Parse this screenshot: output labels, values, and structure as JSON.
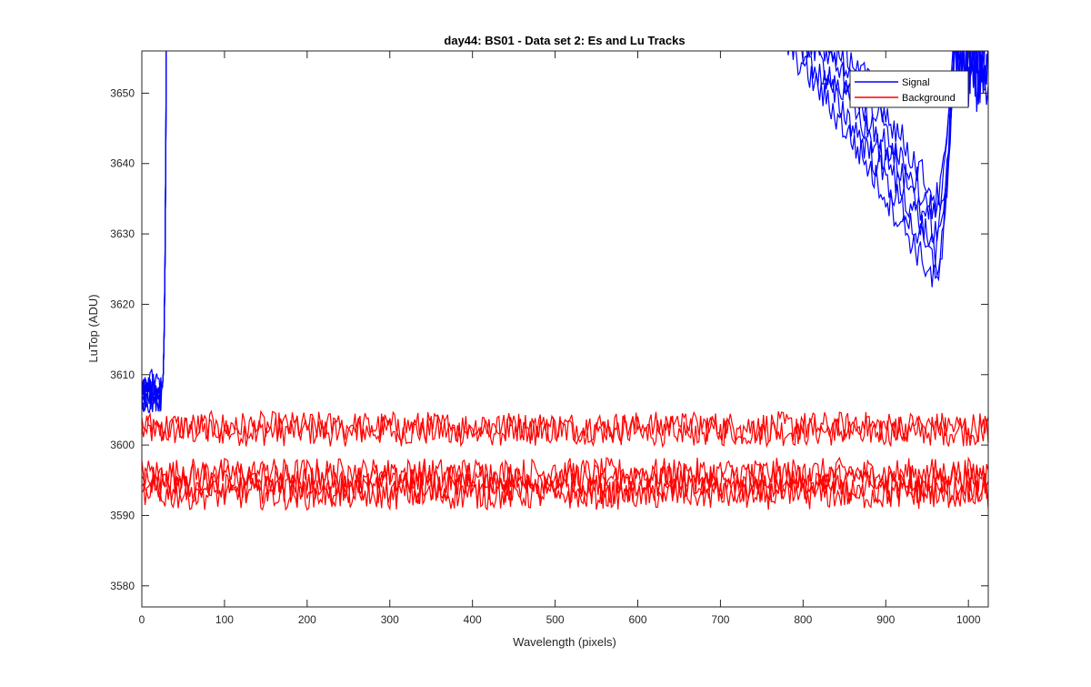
{
  "chart_data": {
    "type": "line",
    "title": "day44: BS01 - Data set 2: Es and Lu Tracks",
    "xlabel": "Wavelength (pixels)",
    "ylabel": "LuTop (ADU)",
    "xlim": [
      0,
      1024
    ],
    "ylim": [
      3577,
      3656
    ],
    "xticks": [
      0,
      100,
      200,
      300,
      400,
      500,
      600,
      700,
      800,
      900,
      1000
    ],
    "yticks": [
      3580,
      3590,
      3600,
      3610,
      3620,
      3630,
      3640,
      3650
    ],
    "grid": false,
    "legend": {
      "position": "top-right",
      "entries": [
        "Signal",
        "Background"
      ]
    },
    "colors": {
      "Signal": "#0000ff",
      "Background": "#ff0000",
      "axes": "#262626"
    },
    "series": [
      {
        "name": "Signal",
        "color": "#0000ff",
        "description_points": [
          {
            "x": 0,
            "y": 3605
          },
          {
            "x": 10,
            "y": 3607
          },
          {
            "x": 20,
            "y": 3608
          },
          {
            "x": 25,
            "y": 3615
          },
          {
            "x": 27,
            "y": 3640
          },
          {
            "x": 29,
            "y": 3660
          },
          {
            "x": 755,
            "y": 3660
          },
          {
            "x": 800,
            "y": 3648
          },
          {
            "x": 850,
            "y": 3638
          },
          {
            "x": 900,
            "y": 3629
          },
          {
            "x": 930,
            "y": 3622
          },
          {
            "x": 955,
            "y": 3626
          },
          {
            "x": 965,
            "y": 3635
          },
          {
            "x": 975,
            "y": 3660
          },
          {
            "x": 1024,
            "y": 3648
          }
        ]
      },
      {
        "name": "Background",
        "color": "#ff0000",
        "track_levels": [
          3602,
          3596,
          3593
        ]
      }
    ]
  }
}
